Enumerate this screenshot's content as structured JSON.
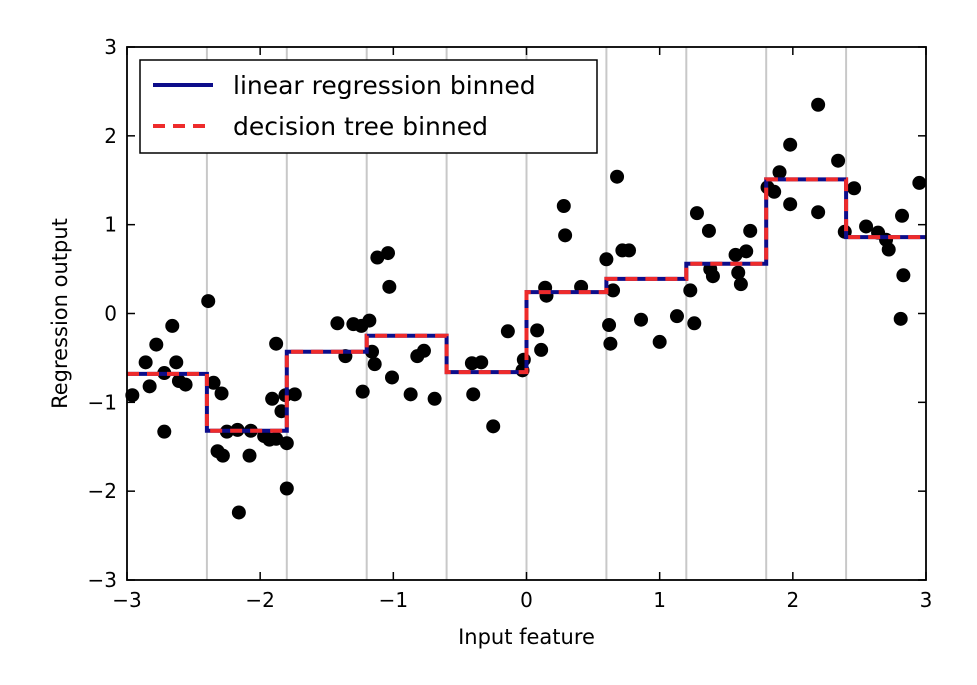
{
  "chart_data": {
    "type": "scatter",
    "xlabel": "Input feature",
    "ylabel": "Regression output",
    "xlim": [
      -3,
      3
    ],
    "ylim": [
      -3,
      3
    ],
    "xticks": [
      -3,
      -2,
      -1,
      0,
      1,
      2,
      3
    ],
    "xtick_labels": [
      "−3",
      "−2",
      "−1",
      "0",
      "1",
      "2",
      "3"
    ],
    "yticks": [
      -3,
      -2,
      -1,
      0,
      1,
      2,
      3
    ],
    "ytick_labels": [
      "−3",
      "−2",
      "−1",
      "0",
      "1",
      "2",
      "3"
    ],
    "bin_edges": [
      -2.4,
      -1.8,
      -1.2,
      -0.6,
      0.0,
      0.6,
      1.2,
      1.8,
      2.4
    ],
    "grid": "vertical lines at bin edges",
    "legend": {
      "placement": "top-left",
      "entries": [
        {
          "label": "linear regression binned",
          "color": "#0d0d8a",
          "style": "solid"
        },
        {
          "label": "decision tree binned",
          "color": "#ee2b2b",
          "style": "dashed"
        }
      ]
    },
    "series": [
      {
        "name": "linear regression binned",
        "kind": "step",
        "color": "#0d0d8a",
        "bins": [
          {
            "x0": -3.0,
            "x1": -2.4,
            "y": -0.68
          },
          {
            "x0": -2.4,
            "x1": -1.8,
            "y": -1.32
          },
          {
            "x0": -1.8,
            "x1": -1.2,
            "y": -0.43
          },
          {
            "x0": -1.2,
            "x1": -0.6,
            "y": -0.25
          },
          {
            "x0": -0.6,
            "x1": 0.0,
            "y": -0.66
          },
          {
            "x0": 0.0,
            "x1": 0.6,
            "y": 0.24
          },
          {
            "x0": 0.6,
            "x1": 1.2,
            "y": 0.39
          },
          {
            "x0": 1.2,
            "x1": 1.8,
            "y": 0.56
          },
          {
            "x0": 1.8,
            "x1": 2.4,
            "y": 1.51
          },
          {
            "x0": 2.4,
            "x1": 3.0,
            "y": 0.86
          }
        ]
      },
      {
        "name": "decision tree binned",
        "kind": "step",
        "color": "#ee2b2b",
        "bins": [
          {
            "x0": -3.0,
            "x1": -2.4,
            "y": -0.68
          },
          {
            "x0": -2.4,
            "x1": -1.8,
            "y": -1.32
          },
          {
            "x0": -1.8,
            "x1": -1.2,
            "y": -0.43
          },
          {
            "x0": -1.2,
            "x1": -0.6,
            "y": -0.25
          },
          {
            "x0": -0.6,
            "x1": 0.0,
            "y": -0.66
          },
          {
            "x0": 0.0,
            "x1": 0.6,
            "y": 0.24
          },
          {
            "x0": 0.6,
            "x1": 1.2,
            "y": 0.39
          },
          {
            "x0": 1.2,
            "x1": 1.8,
            "y": 0.56
          },
          {
            "x0": 1.8,
            "x1": 2.4,
            "y": 1.51
          },
          {
            "x0": 2.4,
            "x1": 3.0,
            "y": 0.86
          }
        ]
      },
      {
        "name": "",
        "kind": "points",
        "color": "#000000",
        "points": [
          [
            -2.96,
            -0.92
          ],
          [
            -2.86,
            -0.55
          ],
          [
            -2.83,
            -0.82
          ],
          [
            -2.78,
            -0.35
          ],
          [
            -2.72,
            -0.67
          ],
          [
            -2.72,
            -1.33
          ],
          [
            -2.66,
            -0.14
          ],
          [
            -2.63,
            -0.55
          ],
          [
            -2.61,
            -0.76
          ],
          [
            -2.56,
            -0.8
          ],
          [
            -2.39,
            0.14
          ],
          [
            -2.35,
            -0.78
          ],
          [
            -2.32,
            -1.55
          ],
          [
            -2.29,
            -0.9
          ],
          [
            -2.28,
            -1.6
          ],
          [
            -2.25,
            -1.33
          ],
          [
            -2.17,
            -1.31
          ],
          [
            -2.16,
            -2.24
          ],
          [
            -2.07,
            -1.32
          ],
          [
            -2.08,
            -1.6
          ],
          [
            -1.97,
            -1.38
          ],
          [
            -1.93,
            -1.42
          ],
          [
            -1.91,
            -0.96
          ],
          [
            -1.88,
            -1.41
          ],
          [
            -1.88,
            -0.34
          ],
          [
            -1.84,
            -1.1
          ],
          [
            -1.81,
            -0.92
          ],
          [
            -1.8,
            -1.46
          ],
          [
            -1.8,
            -1.97
          ],
          [
            -1.74,
            -0.91
          ],
          [
            -1.42,
            -0.11
          ],
          [
            -1.36,
            -0.48
          ],
          [
            -1.3,
            -0.12
          ],
          [
            -1.24,
            -0.14
          ],
          [
            -1.23,
            -0.88
          ],
          [
            -1.18,
            -0.08
          ],
          [
            -1.16,
            -0.43
          ],
          [
            -1.14,
            -0.57
          ],
          [
            -1.12,
            0.63
          ],
          [
            -1.04,
            0.68
          ],
          [
            -1.03,
            0.3
          ],
          [
            -1.01,
            -0.72
          ],
          [
            -0.87,
            -0.91
          ],
          [
            -0.82,
            -0.48
          ],
          [
            -0.77,
            -0.42
          ],
          [
            -0.69,
            -0.96
          ],
          [
            -0.41,
            -0.56
          ],
          [
            -0.4,
            -0.91
          ],
          [
            -0.34,
            -0.55
          ],
          [
            -0.25,
            -1.27
          ],
          [
            -0.14,
            -0.2
          ],
          [
            -0.02,
            -0.52
          ],
          [
            -0.03,
            -0.64
          ],
          [
            0.08,
            -0.19
          ],
          [
            0.11,
            -0.41
          ],
          [
            0.14,
            0.29
          ],
          [
            0.15,
            0.2
          ],
          [
            0.28,
            1.21
          ],
          [
            0.29,
            0.88
          ],
          [
            0.41,
            0.3
          ],
          [
            0.6,
            0.61
          ],
          [
            0.62,
            -0.13
          ],
          [
            0.63,
            -0.34
          ],
          [
            0.65,
            0.26
          ],
          [
            0.68,
            1.54
          ],
          [
            0.72,
            0.71
          ],
          [
            0.77,
            0.71
          ],
          [
            0.86,
            -0.07
          ],
          [
            1.0,
            -0.32
          ],
          [
            1.13,
            -0.03
          ],
          [
            1.23,
            0.26
          ],
          [
            1.26,
            -0.11
          ],
          [
            1.28,
            1.13
          ],
          [
            1.37,
            0.93
          ],
          [
            1.38,
            0.5
          ],
          [
            1.4,
            0.42
          ],
          [
            1.57,
            0.66
          ],
          [
            1.59,
            0.46
          ],
          [
            1.61,
            0.33
          ],
          [
            1.65,
            0.7
          ],
          [
            1.68,
            0.93
          ],
          [
            1.81,
            1.42
          ],
          [
            1.86,
            1.37
          ],
          [
            1.9,
            1.59
          ],
          [
            1.98,
            1.9
          ],
          [
            1.98,
            1.23
          ],
          [
            2.19,
            2.35
          ],
          [
            2.19,
            1.14
          ],
          [
            2.34,
            1.72
          ],
          [
            2.39,
            0.92
          ],
          [
            2.46,
            1.41
          ],
          [
            2.55,
            0.98
          ],
          [
            2.64,
            0.91
          ],
          [
            2.7,
            0.83
          ],
          [
            2.72,
            0.72
          ],
          [
            2.81,
            -0.06
          ],
          [
            2.82,
            1.1
          ],
          [
            2.83,
            0.43
          ],
          [
            2.95,
            1.47
          ]
        ]
      }
    ]
  }
}
